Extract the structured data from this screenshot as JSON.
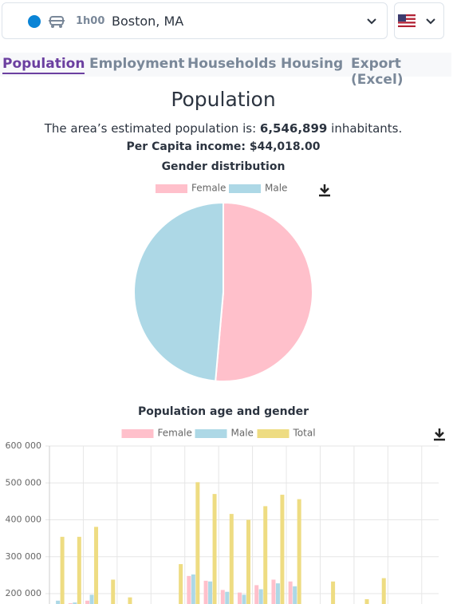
{
  "header": {
    "travel_time": "1h00",
    "location": "Boston, MA"
  },
  "tabs": [
    "Population",
    "Employment",
    "Households",
    "Housing",
    "Export (Excel)"
  ],
  "content": {
    "title": "Population",
    "population_prefix": "The area’s estimated population is:",
    "population_value": "6,546,899",
    "population_suffix": "inhabitants.",
    "income": "Per Capita income: $44,018.00"
  },
  "chart_data": [
    {
      "type": "pie",
      "title": "Gender distribution",
      "categories": [
        "Female",
        "Male"
      ],
      "values": [
        51.4,
        48.6
      ],
      "colors": [
        "#ffc0cb",
        "#add8e6"
      ],
      "legend": "top"
    },
    {
      "type": "bar",
      "title": "Population age and gender",
      "categories": [
        null,
        null,
        null,
        null,
        null,
        null,
        null,
        null,
        null,
        null,
        null,
        null,
        null,
        null,
        null,
        null,
        null,
        null,
        null,
        null,
        null,
        null,
        null
      ],
      "series": [
        {
          "name": "Female",
          "color": "#ffc0cb",
          "values": [
            null,
            174000,
            181000,
            null,
            null,
            null,
            null,
            null,
            248000,
            235000,
            210000,
            203000,
            223000,
            238000,
            233000,
            null,
            null,
            null,
            null,
            null,
            null,
            null,
            null
          ]
        },
        {
          "name": "Male",
          "color": "#add8e6",
          "values": [
            181000,
            176000,
            197000,
            null,
            null,
            null,
            null,
            null,
            252000,
            233000,
            205000,
            197000,
            212000,
            228000,
            220000,
            null,
            null,
            null,
            null,
            null,
            null,
            null,
            null
          ]
        },
        {
          "name": "Total",
          "color": "#eedc82",
          "values": [
            354000,
            354000,
            381000,
            238000,
            190000,
            null,
            null,
            280000,
            502000,
            470000,
            416000,
            400000,
            437000,
            468000,
            456000,
            null,
            233000,
            null,
            185000,
            242000,
            null,
            null,
            null
          ]
        }
      ],
      "ylim": [
        172000,
        600000
      ],
      "yticks": [
        {
          "value": 200000,
          "label": "200 000"
        },
        {
          "value": 300000,
          "label": "300 000"
        },
        {
          "value": 400000,
          "label": "400 000"
        },
        {
          "value": 500000,
          "label": "500 000"
        },
        {
          "value": 600000,
          "label": "600 000"
        }
      ],
      "grid": true,
      "legend": "top"
    }
  ]
}
